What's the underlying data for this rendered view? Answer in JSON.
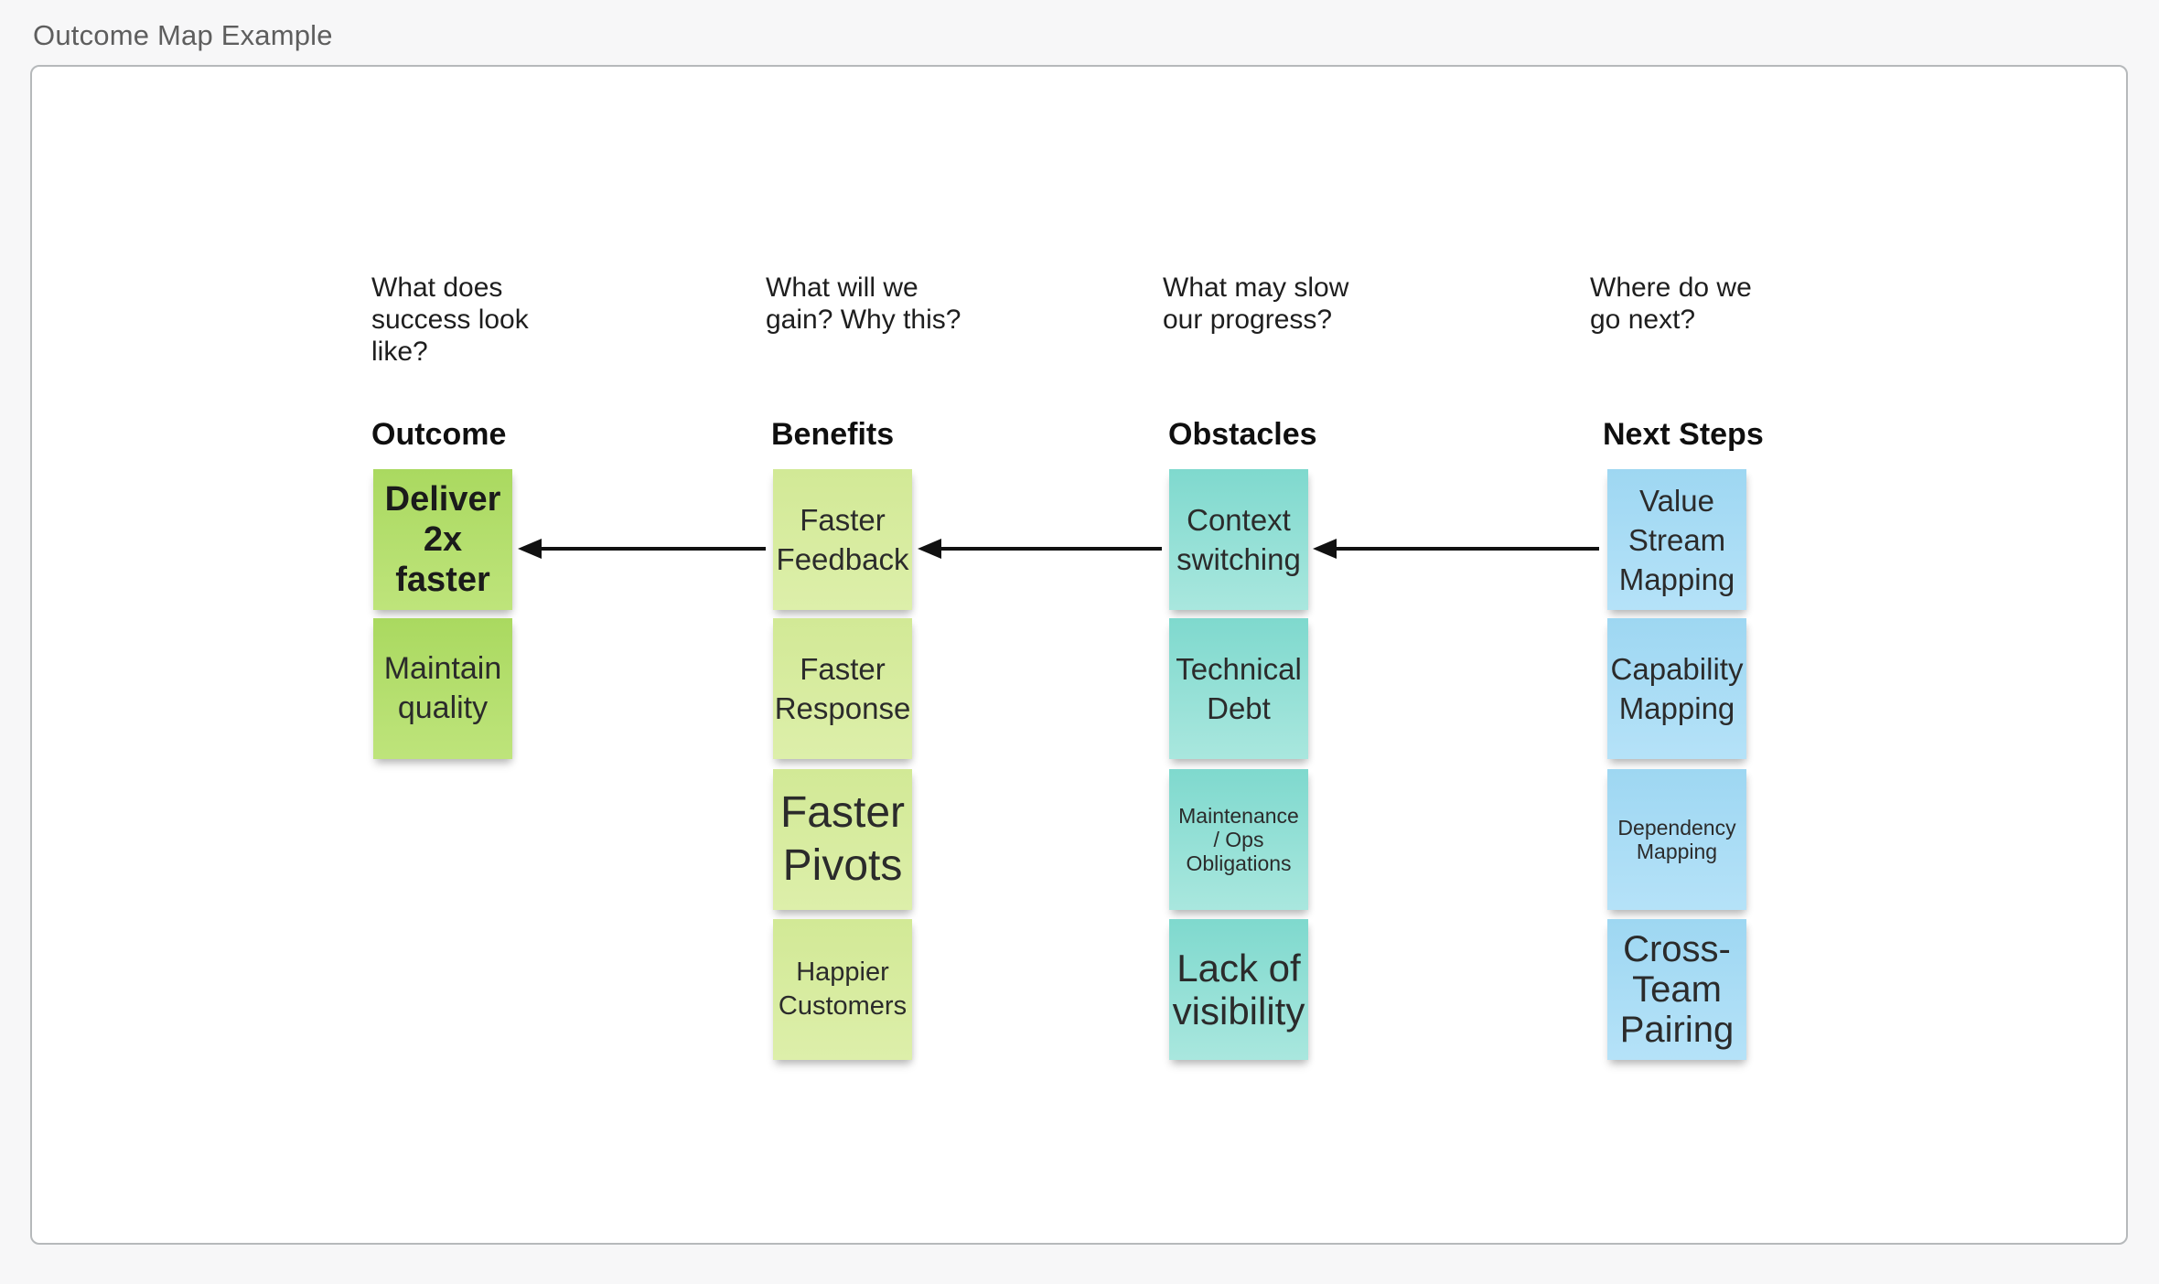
{
  "page": {
    "title": "Outcome Map Example",
    "background": "#f7f7f8"
  },
  "canvas": {
    "background": "#ffffff",
    "border_color": "#b6b9bb"
  },
  "columns": [
    {
      "id": "outcome",
      "question": "What does\nsuccess look\nlike?",
      "header": "Outcome",
      "note_color": "#b3e06d",
      "notes": [
        {
          "text": "Deliver\n2x\nfaster",
          "emphasis": "bold"
        },
        {
          "text": "Maintain\nquality"
        }
      ]
    },
    {
      "id": "benefits",
      "question": "What will we\ngain? Why this?",
      "header": "Benefits",
      "note_color": "#d7ec9e",
      "notes": [
        {
          "text": "Faster\nFeedback"
        },
        {
          "text": "Faster\nResponse"
        },
        {
          "text": "Faster\nPivots"
        },
        {
          "text": "Happier\nCustomers"
        }
      ]
    },
    {
      "id": "obstacles",
      "question": "What may slow\nour progress?",
      "header": "Obstacles",
      "note_color": "#8edcd2",
      "notes": [
        {
          "text": "Context\nswitching"
        },
        {
          "text": "Technical\nDebt"
        },
        {
          "text": "Maintenance\n/ Ops\nObligations"
        },
        {
          "text": "Lack of\nvisibility"
        }
      ]
    },
    {
      "id": "next_steps",
      "question": "Where do we\ngo next?",
      "header": "Next Steps",
      "note_color": "#a6dbf4",
      "notes": [
        {
          "text": "Value\nStream\nMapping"
        },
        {
          "text": "Capability\nMapping"
        },
        {
          "text": "Dependency\nMapping"
        },
        {
          "text": "Cross-\nTeam\nPairing"
        }
      ]
    }
  ],
  "arrows": [
    {
      "from": "Faster Feedback",
      "to": "Deliver 2x faster",
      "direction": "left",
      "color": "#111111"
    },
    {
      "from": "Context switching",
      "to": "Faster Feedback",
      "direction": "left",
      "color": "#111111"
    },
    {
      "from": "Value Stream Mapping",
      "to": "Context switching",
      "direction": "left",
      "color": "#111111"
    }
  ]
}
